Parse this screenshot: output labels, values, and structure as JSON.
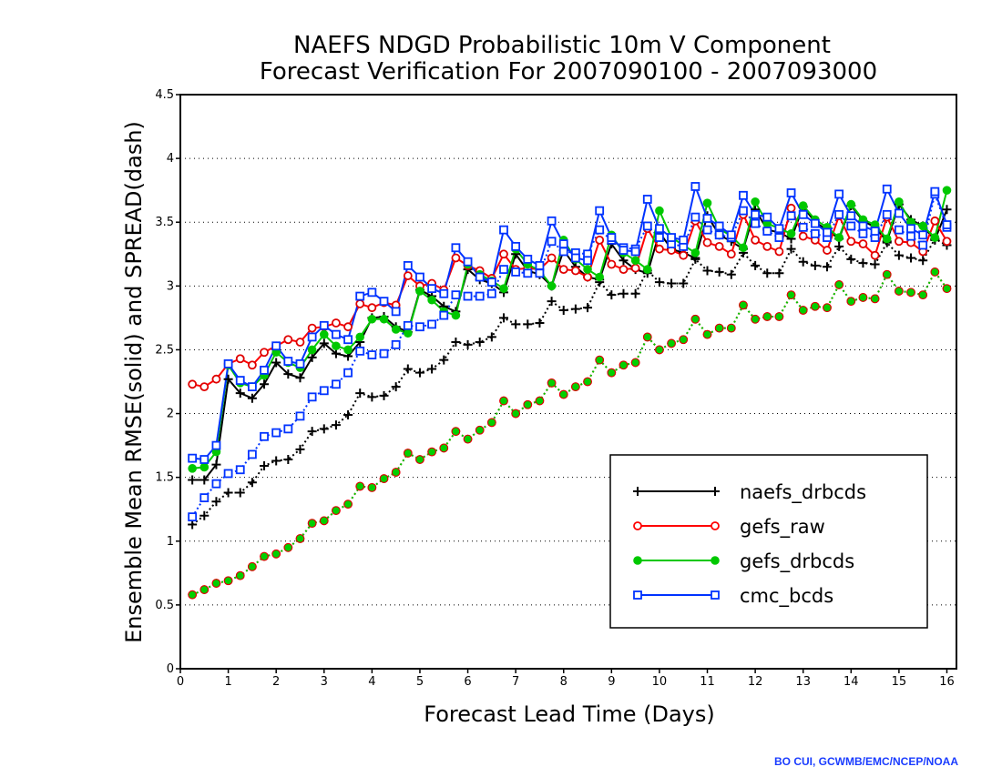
{
  "chart_data": {
    "type": "line",
    "title_line1": "NAEFS NDGD Probabilistic 10m V Component",
    "title_line2": "Forecast Verification For 2007090100 - 2007093000",
    "xlabel": "Forecast Lead Time (Days)",
    "ylabel": "Ensemble Mean RMSE(solid) and SPREAD(dash)",
    "xlim": [
      0,
      16.2
    ],
    "ylim": [
      0,
      4.5
    ],
    "x_ticks": [
      0,
      1,
      2,
      3,
      4,
      5,
      6,
      7,
      8,
      9,
      10,
      11,
      12,
      13,
      14,
      15,
      16
    ],
    "y_ticks": [
      0,
      0.5,
      1,
      1.5,
      2,
      2.5,
      3,
      3.5,
      4,
      4.5
    ],
    "y_tick_labels": [
      "0",
      "0.5",
      "1",
      "1.5",
      "2",
      "2.5",
      "3",
      "3.5",
      "4",
      "4.5"
    ],
    "grid": "horizontal dotted",
    "legend_placement": "bottom-right",
    "x_days": [
      0.25,
      0.5,
      0.75,
      1.0,
      1.25,
      1.5,
      1.75,
      2.0,
      2.25,
      2.5,
      2.75,
      3.0,
      3.25,
      3.5,
      3.75,
      4.0,
      4.25,
      4.5,
      4.75,
      5.0,
      5.25,
      5.5,
      5.75,
      6.0,
      6.25,
      6.5,
      6.75,
      7.0,
      7.25,
      7.5,
      7.75,
      8.0,
      8.25,
      8.5,
      8.75,
      9.0,
      9.25,
      9.5,
      9.75,
      10.0,
      10.25,
      10.5,
      10.75,
      11.0,
      11.25,
      11.5,
      11.75,
      12.0,
      12.25,
      12.5,
      12.75,
      13.0,
      13.25,
      13.5,
      13.75,
      14.0,
      14.25,
      14.5,
      14.75,
      15.0,
      15.25,
      15.5,
      15.75,
      16.0
    ],
    "series": [
      {
        "name": "naefs_drbcds",
        "color": "#000000",
        "marker": "plus",
        "rmse": [
          1.48,
          1.48,
          1.6,
          2.27,
          2.16,
          2.12,
          2.23,
          2.4,
          2.31,
          2.28,
          2.44,
          2.55,
          2.47,
          2.45,
          2.56,
          2.75,
          2.76,
          2.68,
          2.64,
          2.97,
          2.92,
          2.84,
          2.8,
          3.13,
          3.05,
          3.02,
          2.95,
          3.25,
          3.12,
          3.09,
          3.0,
          3.28,
          3.15,
          3.07,
          3.05,
          3.33,
          3.2,
          3.13,
          3.1,
          3.42,
          3.29,
          3.26,
          3.22,
          3.55,
          3.4,
          3.35,
          3.29,
          3.6,
          3.44,
          3.42,
          3.37,
          3.62,
          3.5,
          3.44,
          3.37,
          3.63,
          3.51,
          3.46,
          3.35,
          3.64,
          3.52,
          3.47,
          3.36,
          3.6
        ],
        "spread": [
          1.13,
          1.2,
          1.31,
          1.38,
          1.38,
          1.46,
          1.59,
          1.63,
          1.64,
          1.72,
          1.86,
          1.88,
          1.91,
          1.99,
          2.16,
          2.13,
          2.14,
          2.21,
          2.35,
          2.32,
          2.35,
          2.42,
          2.56,
          2.54,
          2.56,
          2.6,
          2.75,
          2.7,
          2.7,
          2.71,
          2.88,
          2.81,
          2.82,
          2.83,
          3.03,
          2.93,
          2.94,
          2.94,
          3.12,
          3.03,
          3.02,
          3.02,
          3.21,
          3.12,
          3.11,
          3.09,
          3.26,
          3.16,
          3.1,
          3.1,
          3.29,
          3.19,
          3.16,
          3.15,
          3.31,
          3.21,
          3.18,
          3.17,
          3.34,
          3.24,
          3.22,
          3.2,
          3.37,
          3.32
        ]
      },
      {
        "name": "gefs_raw",
        "color": "#ff0000",
        "marker": "open-circle",
        "rmse": [
          2.23,
          2.21,
          2.27,
          2.39,
          2.43,
          2.38,
          2.48,
          2.53,
          2.58,
          2.56,
          2.67,
          2.68,
          2.71,
          2.68,
          2.86,
          2.83,
          2.87,
          2.85,
          3.08,
          3.0,
          3.02,
          2.97,
          3.22,
          3.16,
          3.12,
          3.06,
          3.25,
          3.13,
          3.14,
          3.13,
          3.22,
          3.13,
          3.12,
          3.07,
          3.36,
          3.17,
          3.13,
          3.14,
          3.45,
          3.29,
          3.28,
          3.24,
          3.51,
          3.34,
          3.31,
          3.25,
          3.56,
          3.36,
          3.31,
          3.27,
          3.61,
          3.39,
          3.36,
          3.28,
          3.55,
          3.35,
          3.33,
          3.24,
          3.54,
          3.35,
          3.34,
          3.27,
          3.51,
          3.35
        ],
        "spread": [
          0.58,
          0.62,
          0.67,
          0.69,
          0.73,
          0.8,
          0.88,
          0.9,
          0.95,
          1.02,
          1.14,
          1.16,
          1.24,
          1.29,
          1.43,
          1.42,
          1.49,
          1.54,
          1.69,
          1.64,
          1.7,
          1.73,
          1.86,
          1.8,
          1.87,
          1.93,
          2.1,
          2.0,
          2.07,
          2.1,
          2.24,
          2.15,
          2.21,
          2.25,
          2.42,
          2.32,
          2.38,
          2.4,
          2.6,
          2.5,
          2.55,
          2.58,
          2.74,
          2.62,
          2.67,
          2.67,
          2.85,
          2.74,
          2.76,
          2.76,
          2.93,
          2.81,
          2.84,
          2.83,
          3.01,
          2.88,
          2.91,
          2.9,
          3.09,
          2.96,
          2.95,
          2.93,
          3.11,
          2.98
        ]
      },
      {
        "name": "gefs_drbcds",
        "color": "#00c800",
        "marker": "filled-circle",
        "rmse": [
          1.57,
          1.58,
          1.7,
          2.38,
          2.24,
          2.21,
          2.3,
          2.48,
          2.4,
          2.36,
          2.5,
          2.62,
          2.53,
          2.5,
          2.6,
          2.74,
          2.74,
          2.66,
          2.63,
          2.96,
          2.89,
          2.8,
          2.77,
          3.17,
          3.09,
          3.04,
          2.98,
          3.29,
          3.17,
          3.12,
          3.0,
          3.36,
          3.21,
          3.13,
          3.07,
          3.4,
          3.26,
          3.2,
          3.13,
          3.59,
          3.38,
          3.32,
          3.26,
          3.65,
          3.45,
          3.39,
          3.3,
          3.66,
          3.49,
          3.45,
          3.41,
          3.63,
          3.52,
          3.46,
          3.38,
          3.64,
          3.52,
          3.48,
          3.37,
          3.66,
          3.5,
          3.47,
          3.38,
          3.75
        ],
        "spread": [
          0.58,
          0.62,
          0.67,
          0.69,
          0.73,
          0.8,
          0.88,
          0.9,
          0.95,
          1.02,
          1.14,
          1.16,
          1.24,
          1.29,
          1.43,
          1.42,
          1.49,
          1.54,
          1.69,
          1.64,
          1.7,
          1.73,
          1.86,
          1.8,
          1.87,
          1.93,
          2.1,
          2.0,
          2.07,
          2.1,
          2.24,
          2.15,
          2.21,
          2.25,
          2.42,
          2.32,
          2.38,
          2.4,
          2.6,
          2.5,
          2.55,
          2.58,
          2.74,
          2.62,
          2.67,
          2.67,
          2.85,
          2.74,
          2.76,
          2.76,
          2.93,
          2.81,
          2.84,
          2.83,
          3.01,
          2.88,
          2.91,
          2.9,
          3.09,
          2.96,
          2.95,
          2.93,
          3.11,
          2.98
        ]
      },
      {
        "name": "cmc_bcds",
        "color": "#0033ff",
        "marker": "open-square",
        "rmse": [
          1.65,
          1.64,
          1.75,
          2.39,
          2.26,
          2.21,
          2.34,
          2.53,
          2.41,
          2.39,
          2.6,
          2.69,
          2.62,
          2.58,
          2.92,
          2.95,
          2.88,
          2.8,
          3.16,
          3.07,
          2.98,
          2.94,
          3.3,
          3.19,
          3.07,
          3.03,
          3.44,
          3.31,
          3.21,
          3.16,
          3.51,
          3.33,
          3.22,
          3.2,
          3.59,
          3.38,
          3.28,
          3.27,
          3.68,
          3.45,
          3.38,
          3.36,
          3.78,
          3.53,
          3.47,
          3.4,
          3.71,
          3.56,
          3.54,
          3.45,
          3.73,
          3.56,
          3.49,
          3.42,
          3.72,
          3.55,
          3.47,
          3.43,
          3.76,
          3.57,
          3.45,
          3.4,
          3.74,
          3.48
        ],
        "spread": [
          1.19,
          1.34,
          1.45,
          1.53,
          1.56,
          1.68,
          1.82,
          1.85,
          1.88,
          1.98,
          2.13,
          2.18,
          2.23,
          2.32,
          2.49,
          2.46,
          2.47,
          2.54,
          2.69,
          2.68,
          2.7,
          2.77,
          2.93,
          2.92,
          2.92,
          2.94,
          3.13,
          3.11,
          3.1,
          3.1,
          3.35,
          3.27,
          3.26,
          3.25,
          3.44,
          3.36,
          3.3,
          3.29,
          3.47,
          3.38,
          3.33,
          3.31,
          3.54,
          3.44,
          3.4,
          3.38,
          3.59,
          3.49,
          3.43,
          3.38,
          3.55,
          3.46,
          3.41,
          3.38,
          3.56,
          3.47,
          3.41,
          3.38,
          3.56,
          3.44,
          3.39,
          3.32,
          3.72,
          3.46
        ]
      }
    ]
  },
  "footer": {
    "credit": "BO CUI, GCWMB/EMC/NCEP/NOAA"
  }
}
